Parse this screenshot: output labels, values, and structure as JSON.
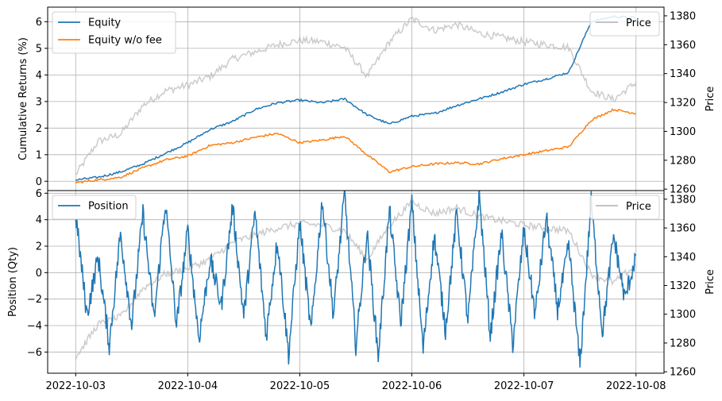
{
  "chart_data": [
    {
      "type": "line",
      "ylabel": "Cumulative Returns (%)",
      "y2label": "Price",
      "ylim": [
        -0.35,
        6.55
      ],
      "y2lim": [
        1259,
        1386
      ],
      "yticks": [
        "0",
        "1",
        "2",
        "3",
        "4",
        "5",
        "6"
      ],
      "y2ticks": [
        "1260",
        "1280",
        "1300",
        "1320",
        "1340",
        "1360",
        "1380"
      ],
      "grid": true,
      "legend": "top-left",
      "legend2": "top-right",
      "series": [
        {
          "name": "Equity",
          "color": "#1f77b4",
          "axis": "left",
          "x": [
            0,
            0.2,
            0.4,
            0.6,
            0.8,
            1.0,
            1.2,
            1.4,
            1.6,
            1.8,
            2.0,
            2.2,
            2.4,
            2.6,
            2.8,
            3.0,
            3.2,
            3.4,
            3.6,
            3.8,
            4.0,
            4.2,
            4.4,
            4.6,
            4.8,
            5.0
          ],
          "values": [
            0.05,
            0.15,
            0.35,
            0.65,
            1.05,
            1.45,
            1.95,
            2.25,
            2.7,
            2.95,
            3.05,
            2.95,
            3.1,
            2.5,
            2.15,
            2.45,
            2.55,
            2.85,
            3.1,
            3.35,
            3.65,
            3.85,
            4.1,
            6.0,
            6.2,
            6.15
          ]
        },
        {
          "name": "Equity w/o fee",
          "color": "#ff7f0e",
          "axis": "left",
          "x": [
            0,
            0.2,
            0.4,
            0.6,
            0.8,
            1.0,
            1.2,
            1.4,
            1.6,
            1.8,
            2.0,
            2.2,
            2.4,
            2.6,
            2.8,
            3.0,
            3.2,
            3.4,
            3.6,
            3.8,
            4.0,
            4.2,
            4.4,
            4.6,
            4.8,
            5.0
          ],
          "values": [
            -0.05,
            0.05,
            0.15,
            0.5,
            0.8,
            0.95,
            1.35,
            1.45,
            1.65,
            1.8,
            1.45,
            1.55,
            1.7,
            1.0,
            0.35,
            0.55,
            0.65,
            0.7,
            0.65,
            0.85,
            1.0,
            1.15,
            1.3,
            2.3,
            2.7,
            2.55
          ]
        },
        {
          "name": "Price",
          "color": "#bbbbbb",
          "axis": "right",
          "x": [
            0,
            0.2,
            0.4,
            0.6,
            0.8,
            1.0,
            1.2,
            1.4,
            1.6,
            1.8,
            2.0,
            2.2,
            2.4,
            2.6,
            2.8,
            3.0,
            3.2,
            3.4,
            3.6,
            3.8,
            4.0,
            4.2,
            4.4,
            4.6,
            4.8,
            5.0
          ],
          "values": [
            1270,
            1293,
            1298,
            1318,
            1328,
            1332,
            1338,
            1350,
            1355,
            1360,
            1363,
            1362,
            1358,
            1338,
            1362,
            1378,
            1370,
            1374,
            1368,
            1365,
            1362,
            1360,
            1358,
            1328,
            1322,
            1334
          ]
        }
      ]
    },
    {
      "type": "line",
      "ylabel": "Position (Qty)",
      "y2label": "Price",
      "ylim": [
        -7.6,
        6.2
      ],
      "y2lim": [
        1259,
        1386
      ],
      "yticks": [
        "−6",
        "−4",
        "−2",
        "0",
        "2",
        "4",
        "6"
      ],
      "y2ticks": [
        "1260",
        "1280",
        "1300",
        "1320",
        "1340",
        "1360",
        "1380"
      ],
      "xticks": [
        "2022-10-03",
        "2022-10-04",
        "2022-10-05",
        "2022-10-06",
        "2022-10-07",
        "2022-10-08"
      ],
      "grid": true,
      "legend": "top-left",
      "legend2": "top-right",
      "series": [
        {
          "name": "Position",
          "color": "#1f77b4",
          "axis": "left",
          "x": [
            0,
            0.1,
            0.2,
            0.3,
            0.4,
            0.5,
            0.6,
            0.7,
            0.8,
            0.9,
            1.0,
            1.1,
            1.2,
            1.3,
            1.4,
            1.5,
            1.6,
            1.7,
            1.8,
            1.9,
            2.0,
            2.1,
            2.2,
            2.3,
            2.4,
            2.5,
            2.6,
            2.7,
            2.8,
            2.9,
            3.0,
            3.1,
            3.2,
            3.3,
            3.4,
            3.5,
            3.6,
            3.7,
            3.8,
            3.9,
            4.0,
            4.1,
            4.2,
            4.3,
            4.4,
            4.5,
            4.6,
            4.7,
            4.8,
            4.9,
            5.0
          ],
          "values": [
            4.4,
            -3.2,
            1.2,
            -5.5,
            3.0,
            -4.0,
            4.5,
            -3.5,
            5.3,
            -4.0,
            3.2,
            -5.0,
            1.0,
            -2.5,
            5.0,
            -3.3,
            4.6,
            -4.8,
            2.5,
            -6.2,
            3.8,
            -4.5,
            5.5,
            -3.2,
            6.0,
            -5.5,
            3.0,
            -6.3,
            4.7,
            -3.8,
            5.3,
            -5.8,
            2.8,
            -4.3,
            4.5,
            -3.6,
            6.0,
            -4.8,
            3.0,
            -5.4,
            3.2,
            -3.2,
            4.2,
            -2.8,
            2.0,
            -7.0,
            5.4,
            -4.5,
            2.8,
            -2.0,
            1.3
          ]
        },
        {
          "name": "Price",
          "color": "#bbbbbb",
          "axis": "right",
          "x": [
            0,
            0.2,
            0.4,
            0.6,
            0.8,
            1.0,
            1.2,
            1.4,
            1.6,
            1.8,
            2.0,
            2.2,
            2.4,
            2.6,
            2.8,
            3.0,
            3.2,
            3.4,
            3.6,
            3.8,
            4.0,
            4.2,
            4.4,
            4.6,
            4.8,
            5.0
          ],
          "values": [
            1270,
            1293,
            1298,
            1318,
            1328,
            1332,
            1338,
            1350,
            1355,
            1360,
            1363,
            1362,
            1358,
            1338,
            1362,
            1378,
            1370,
            1374,
            1368,
            1365,
            1362,
            1360,
            1358,
            1328,
            1322,
            1334
          ]
        }
      ]
    }
  ]
}
